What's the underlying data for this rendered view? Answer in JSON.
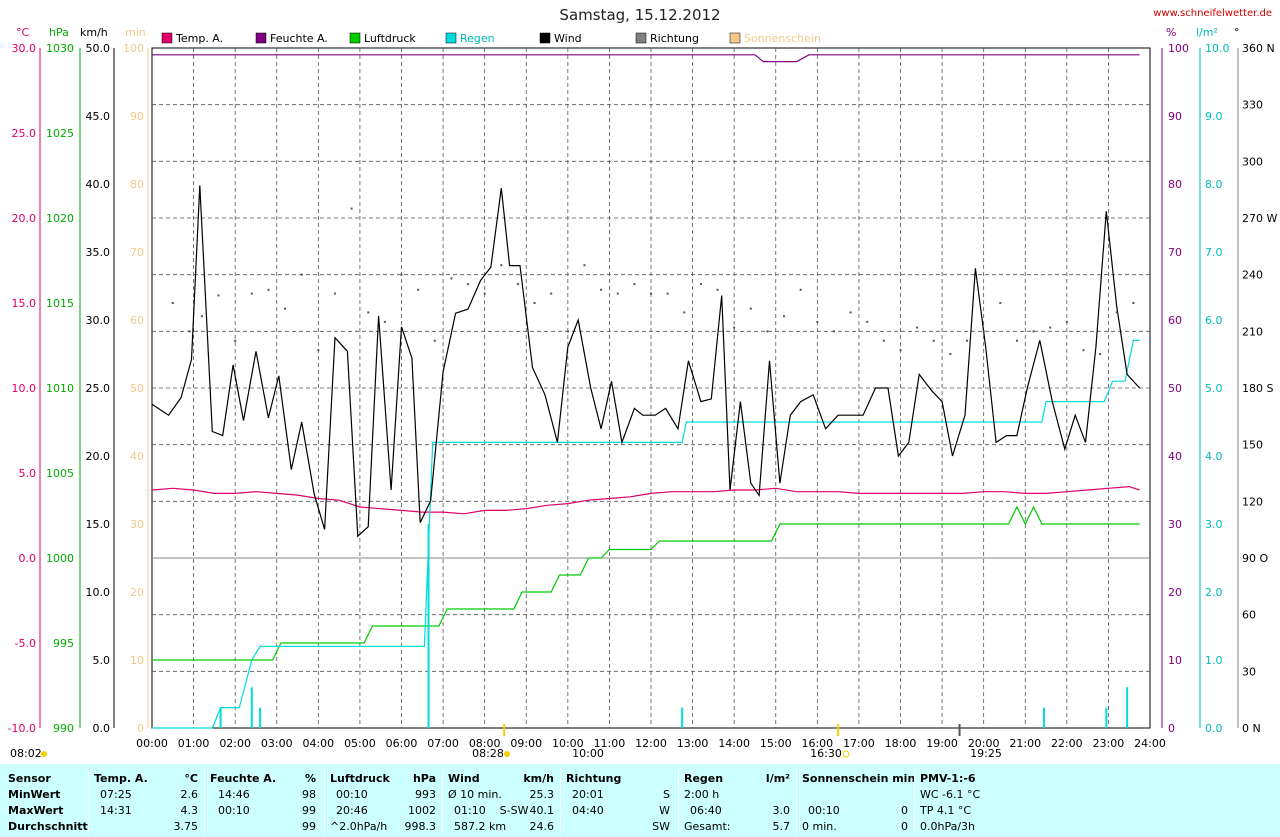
{
  "header": {
    "title": "Samstag, 15.12.2012",
    "site": "www.schneifelwetter.de",
    "units_left": [
      "°C",
      "hPa",
      "km/h",
      "min"
    ],
    "units_right": [
      "%",
      "l/m²",
      "°"
    ]
  },
  "legend": [
    {
      "label": "Temp. A.",
      "color": "#e0006a"
    },
    {
      "label": "Feuchte A.",
      "color": "#800080"
    },
    {
      "label": "Luftdruck",
      "color": "#00cc00"
    },
    {
      "label": "Regen",
      "color": "#00dddd"
    },
    {
      "label": "Wind",
      "color": "#000000"
    },
    {
      "label": "Richtung",
      "color": "#808080"
    },
    {
      "label": "Sonnenschein",
      "color": "#f5c78a"
    }
  ],
  "axes": {
    "temp_ticks": [
      "30.0",
      "25.0",
      "20.0",
      "15.0",
      "10.0",
      "5.0",
      "0.0",
      "-5.0",
      "-10.0"
    ],
    "pressure_ticks": [
      "1030",
      "1025",
      "1020",
      "1015",
      "1010",
      "1005",
      "1000",
      "995",
      "990"
    ],
    "wind_ticks": [
      "50.0",
      "45.0",
      "40.0",
      "35.0",
      "30.0",
      "25.0",
      "20.0",
      "15.0",
      "10.0",
      "5.0",
      "0.0"
    ],
    "sun_ticks": [
      "100",
      "90",
      "80",
      "70",
      "60",
      "50",
      "40",
      "30",
      "20",
      "10",
      "0"
    ],
    "humidity_ticks": [
      "100",
      "90",
      "80",
      "70",
      "60",
      "50",
      "40",
      "30",
      "20",
      "10",
      "0"
    ],
    "rain_ticks": [
      "10.0",
      "9.0",
      "8.0",
      "7.0",
      "6.0",
      "5.0",
      "4.0",
      "3.0",
      "2.0",
      "1.0",
      "0.0"
    ],
    "direction_ticks": [
      "360 N",
      "330",
      "300",
      "270 W",
      "240",
      "210",
      "180 S",
      "150",
      "120",
      "90  O",
      "60",
      "30",
      "0  N"
    ],
    "time_ticks": [
      "00:00",
      "01:00",
      "02:00",
      "03:00",
      "04:00",
      "05:00",
      "06:00",
      "07:00",
      "08:00",
      "09:00",
      "10:00",
      "11:00",
      "12:00",
      "13:00",
      "14:00",
      "15:00",
      "16:00",
      "17:00",
      "18:00",
      "19:00",
      "20:00",
      "21:00",
      "22:00",
      "23:00",
      "24:00"
    ],
    "sun_events": [
      "08:02",
      "08:28",
      "10:00",
      "16:30",
      "19:25"
    ]
  },
  "chart_data": {
    "type": "line",
    "title": "Samstag, 15.12.2012",
    "x_range_hours": [
      0,
      24
    ],
    "series": [
      {
        "name": "Temp. A.",
        "unit": "°C",
        "color": "#e0006a",
        "x": [
          0,
          0.5,
          1,
          1.5,
          2,
          2.5,
          3,
          3.5,
          4,
          4.5,
          5,
          5.5,
          6,
          6.5,
          7,
          7.5,
          8,
          8.5,
          9,
          9.5,
          10,
          10.5,
          11,
          11.5,
          12,
          12.5,
          13,
          13.5,
          14,
          14.5,
          15,
          15.5,
          16,
          16.5,
          17,
          17.5,
          18,
          18.5,
          19,
          19.5,
          20,
          20.5,
          21,
          21.5,
          22,
          22.5,
          23,
          23.5,
          23.75
        ],
        "y": [
          4.0,
          4.1,
          4.0,
          3.8,
          3.8,
          3.9,
          3.8,
          3.7,
          3.5,
          3.4,
          3.0,
          2.9,
          2.8,
          2.7,
          2.7,
          2.6,
          2.8,
          2.8,
          2.9,
          3.1,
          3.2,
          3.4,
          3.5,
          3.6,
          3.8,
          3.9,
          3.9,
          3.9,
          4.0,
          4.0,
          4.1,
          3.9,
          3.9,
          3.9,
          3.8,
          3.8,
          3.8,
          3.8,
          3.8,
          3.8,
          3.9,
          3.9,
          3.8,
          3.8,
          3.9,
          4.0,
          4.1,
          4.2,
          4.0
        ]
      },
      {
        "name": "Feuchte A.",
        "unit": "%",
        "color": "#800080",
        "x": [
          0,
          14.5,
          14.7,
          15.5,
          15.8,
          23.75
        ],
        "y": [
          99,
          99,
          98,
          98,
          99,
          99
        ]
      },
      {
        "name": "Luftdruck",
        "unit": "hPa",
        "color": "#00cc00",
        "x": [
          0,
          2.9,
          3.1,
          5.1,
          5.3,
          6.9,
          7.1,
          8.7,
          8.9,
          9.6,
          9.8,
          10.3,
          10.5,
          10.8,
          11,
          12.0,
          12.2,
          14.9,
          15.1,
          20.6,
          20.8,
          21.0,
          21.2,
          21.4,
          21.6,
          23.75
        ],
        "y": [
          994,
          994,
          995,
          995,
          996,
          996,
          997,
          997,
          998,
          998,
          999,
          999,
          1000,
          1000,
          1000.5,
          1000.5,
          1001,
          1001,
          1002,
          1002,
          1003,
          1002,
          1003,
          1002,
          1002,
          1002
        ]
      },
      {
        "name": "Regen",
        "unit": "l/m²",
        "color": "#00dddd",
        "x": [
          0,
          1.45,
          1.65,
          2.1,
          2.4,
          2.6,
          6.55,
          6.75,
          12.75,
          12.85,
          21.4,
          21.5,
          22.9,
          23.1,
          23.4,
          23.6,
          23.75
        ],
        "y": [
          0,
          0,
          0.3,
          0.3,
          1.0,
          1.2,
          1.2,
          4.2,
          4.2,
          4.5,
          4.5,
          4.8,
          4.8,
          5.1,
          5.1,
          5.7,
          5.7
        ]
      },
      {
        "name": "Wind",
        "unit": "km/h",
        "color": "#000000",
        "x": [
          0,
          0.4,
          0.7,
          0.95,
          1.15,
          1.45,
          1.7,
          1.95,
          2.2,
          2.5,
          2.8,
          3.05,
          3.35,
          3.6,
          3.9,
          4.15,
          4.4,
          4.7,
          4.95,
          5.2,
          5.45,
          5.75,
          6.0,
          6.25,
          6.45,
          6.7,
          7.0,
          7.3,
          7.6,
          7.9,
          8.15,
          8.4,
          8.6,
          8.85,
          9.15,
          9.45,
          9.75,
          10.0,
          10.25,
          10.55,
          10.8,
          11.05,
          11.3,
          11.6,
          11.8,
          12.1,
          12.35,
          12.65,
          12.9,
          13.2,
          13.45,
          13.7,
          13.9,
          14.15,
          14.4,
          14.6,
          14.85,
          15.1,
          15.35,
          15.6,
          15.9,
          16.2,
          16.5,
          16.8,
          17.1,
          17.4,
          17.7,
          17.95,
          18.2,
          18.45,
          18.75,
          19.0,
          19.25,
          19.55,
          19.8,
          20.05,
          20.3,
          20.55,
          20.8,
          21.05,
          21.35,
          21.65,
          21.95,
          22.2,
          22.45,
          22.7,
          22.95,
          23.2,
          23.45,
          23.75
        ],
        "y": [
          23.8,
          23.0,
          24.3,
          27.1,
          39.9,
          21.8,
          21.5,
          26.7,
          22.6,
          27.7,
          22.8,
          25.9,
          19.0,
          22.5,
          17.2,
          14.6,
          28.7,
          27.7,
          14.1,
          14.8,
          30.3,
          17.5,
          29.5,
          27.2,
          15.1,
          16.7,
          26.2,
          30.5,
          30.8,
          32.9,
          33.9,
          39.7,
          34.0,
          34.0,
          26.5,
          24.5,
          21.0,
          28.0,
          30.0,
          25.0,
          22.0,
          25.5,
          21.0,
          23.5,
          23.0,
          23.0,
          23.5,
          22.0,
          27.0,
          24.0,
          24.2,
          31.8,
          17.5,
          24.0,
          18.0,
          17.1,
          27.0,
          18.0,
          23.0,
          24.0,
          24.5,
          22.0,
          23.0,
          23.0,
          23.0,
          25.0,
          25.0,
          20.0,
          21.0,
          26.0,
          24.8,
          24.0,
          20.0,
          23.0,
          33.8,
          28.0,
          21.0,
          21.5,
          21.5,
          25.0,
          28.5,
          24.0,
          20.5,
          23.0,
          21.0,
          28.0,
          38.0,
          31.0,
          26.0,
          25.0
        ]
      },
      {
        "name": "Richtung",
        "unit": "°",
        "color": "#808080",
        "x": [
          0.5,
          0.9,
          1.2,
          1.6,
          2.0,
          2.4,
          2.8,
          3.2,
          3.6,
          4.0,
          4.4,
          4.8,
          5.2,
          5.6,
          6.0,
          6.4,
          6.8,
          7.2,
          7.6,
          8.0,
          8.4,
          8.8,
          9.2,
          9.6,
          10.0,
          10.4,
          10.8,
          11.2,
          11.6,
          12.0,
          12.4,
          12.8,
          13.2,
          13.6,
          14.0,
          14.4,
          14.8,
          15.2,
          15.6,
          16.0,
          16.4,
          16.8,
          17.2,
          17.6,
          18.0,
          18.4,
          18.8,
          19.2,
          19.6,
          20.0,
          20.4,
          20.8,
          21.2,
          21.6,
          22.0,
          22.4,
          22.8,
          23.2,
          23.6
        ],
        "y": [
          225,
          210,
          218,
          229,
          205,
          230,
          232,
          222,
          240,
          200,
          230,
          275,
          220,
          215,
          240,
          232,
          205,
          238,
          235,
          230,
          245,
          235,
          225,
          230,
          210,
          245,
          232,
          230,
          235,
          230,
          230,
          220,
          235,
          232,
          212,
          222,
          210,
          218,
          232,
          215,
          210,
          220,
          215,
          205,
          200,
          212,
          205,
          198,
          205,
          210,
          225,
          205,
          210,
          212,
          215,
          200,
          198,
          220,
          225
        ]
      },
      {
        "name": "Sonnenschein",
        "unit": "min",
        "color": "#f5c78a",
        "x": [
          0,
          23.75
        ],
        "y": [
          0,
          0
        ]
      }
    ]
  },
  "stats": {
    "columns": [
      {
        "id": "sensor",
        "header": "Sensor",
        "rows": [
          "MinWert",
          "MaxWert",
          "Durchschnitt"
        ]
      },
      {
        "id": "temp",
        "header": "Temp. A.",
        "unit": "°C",
        "rows": [
          [
            "07:25",
            "2.6"
          ],
          [
            "14:31",
            "4.3"
          ],
          [
            "",
            "3.75"
          ]
        ]
      },
      {
        "id": "hum",
        "header": "Feuchte A.",
        "unit": "%",
        "rows": [
          [
            "14:46",
            "98"
          ],
          [
            "00:10",
            "99"
          ],
          [
            "",
            "99"
          ]
        ]
      },
      {
        "id": "press",
        "header": "Luftdruck",
        "unit": "hPa",
        "rows": [
          [
            "00:10",
            "993"
          ],
          [
            "20:46",
            "1002"
          ],
          [
            "^2.0hPa/h",
            "998.3"
          ]
        ]
      },
      {
        "id": "wind",
        "header": "Wind",
        "unit": "km/h",
        "rows": [
          [
            "Ø 10 min.",
            "25.3"
          ],
          [
            "01:10    S-SW",
            "40.1"
          ],
          [
            "587.2 km",
            "24.6"
          ]
        ]
      },
      {
        "id": "dir",
        "header": "Richtung",
        "unit": "",
        "rows": [
          [
            "20:01",
            "S"
          ],
          [
            "04:40",
            "W"
          ],
          [
            "",
            "SW"
          ]
        ]
      },
      {
        "id": "rain",
        "header": "Regen",
        "unit": "l/m²",
        "rows": [
          [
            "2:00 h",
            ""
          ],
          [
            "06:40",
            "3.0"
          ],
          [
            "Gesamt:",
            "5.7"
          ]
        ]
      },
      {
        "id": "sun",
        "header": "Sonnenschein min",
        "unit": "",
        "rows": [
          [
            "",
            ""
          ],
          [
            "00:10",
            "0"
          ],
          [
            "0 min.",
            "0"
          ]
        ]
      },
      {
        "id": "pmv",
        "header": "PMV-1:-6",
        "unit": "",
        "rows": [
          [
            "WC -6.1 °C",
            ""
          ],
          [
            "TP 4.1 °C",
            ""
          ],
          [
            "0.0hPa/3h",
            ""
          ]
        ]
      }
    ]
  }
}
